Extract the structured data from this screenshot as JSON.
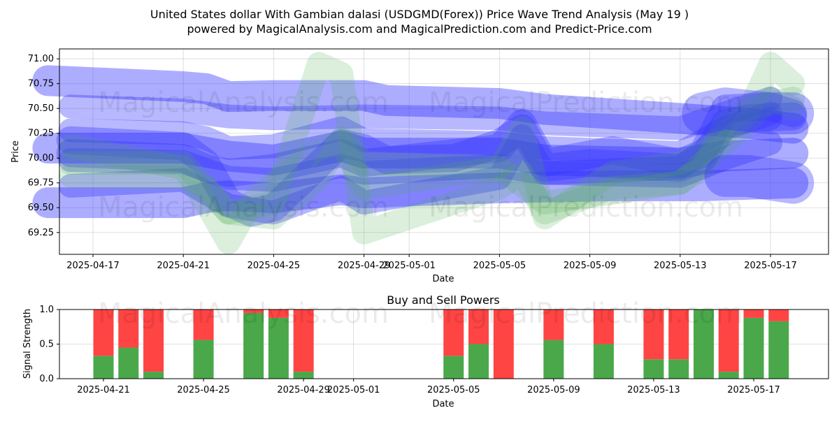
{
  "title_line1": "United States dollar With Gambian dalasi (USDGMD(Forex)) Price Wave Trend Analysis (May 19 )",
  "title_line2": "powered by MagicalAnalysis.com and MagicalPrediction.com and Predict-Price.com",
  "watermarks": [
    "MagicalAnalysis.com",
    "MagicalPrediction.com"
  ],
  "colors": {
    "blue": "#3333ff",
    "green": "#4caf50",
    "red": "#ff4444",
    "bar_green": "#4aa84a"
  },
  "chart_data": [
    {
      "type": "line",
      "xlabel": "Date",
      "ylabel": "Price",
      "ylim": [
        69.03,
        71.1
      ],
      "yticks": [
        69.25,
        69.5,
        69.75,
        70.0,
        70.25,
        70.5,
        70.75,
        71.0
      ],
      "xticks": [
        "2025-04-17",
        "2025-04-21",
        "2025-04-25",
        "2025-04-29",
        "2025-05-01",
        "2025-05-05",
        "2025-05-09",
        "2025-05-13",
        "2025-05-17"
      ],
      "grid": true,
      "series": [
        {
          "color": "blue",
          "width": 44,
          "opacity": 0.4,
          "points": [
            [
              "2025-04-15",
              70.78
            ],
            [
              "2025-04-21",
              70.72
            ],
            [
              "2025-04-22",
              70.7
            ],
            [
              "2025-04-23",
              70.62
            ],
            [
              "2025-04-25",
              70.63
            ],
            [
              "2025-04-29",
              70.63
            ],
            [
              "2025-04-30",
              70.58
            ],
            [
              "2025-05-05",
              70.55
            ],
            [
              "2025-05-07",
              70.49
            ],
            [
              "2025-05-13",
              70.4
            ],
            [
              "2025-05-16",
              70.35
            ],
            [
              "2025-05-18",
              70.3
            ]
          ]
        },
        {
          "color": "blue",
          "width": 44,
          "opacity": 0.4,
          "points": [
            [
              "2025-04-15",
              69.55
            ],
            [
              "2025-04-21",
              69.55
            ],
            [
              "2025-04-22",
              69.6
            ],
            [
              "2025-04-23",
              69.62
            ],
            [
              "2025-04-25",
              69.6
            ],
            [
              "2025-04-28",
              69.68
            ],
            [
              "2025-04-29",
              69.65
            ],
            [
              "2025-05-05",
              69.7
            ],
            [
              "2025-05-10",
              69.72
            ],
            [
              "2025-05-14",
              69.72
            ],
            [
              "2025-05-18",
              69.75
            ]
          ]
        },
        {
          "color": "blue",
          "width": 44,
          "opacity": 0.4,
          "points": [
            [
              "2025-04-15",
              70.1
            ],
            [
              "2025-04-21",
              70.1
            ],
            [
              "2025-04-23",
              70.02
            ],
            [
              "2025-04-25",
              69.98
            ],
            [
              "2025-04-28",
              70.12
            ],
            [
              "2025-04-29",
              70.05
            ],
            [
              "2025-05-05",
              70.05
            ],
            [
              "2025-05-07",
              69.98
            ],
            [
              "2025-05-13",
              69.95
            ],
            [
              "2025-05-15",
              70.02
            ],
            [
              "2025-05-18",
              70.05
            ]
          ]
        },
        {
          "color": "blue",
          "width": 34,
          "opacity": 0.35,
          "points": [
            [
              "2025-04-16",
              70.52
            ],
            [
              "2025-04-21",
              70.48
            ],
            [
              "2025-04-23",
              70.42
            ],
            [
              "2025-04-25",
              70.4
            ],
            [
              "2025-04-29",
              70.42
            ],
            [
              "2025-05-05",
              70.4
            ],
            [
              "2025-05-07",
              70.35
            ],
            [
              "2025-05-13",
              70.3
            ],
            [
              "2025-05-15",
              70.45
            ],
            [
              "2025-05-17",
              70.6
            ]
          ]
        },
        {
          "color": "blue",
          "width": 34,
          "opacity": 0.35,
          "points": [
            [
              "2025-04-16",
              70.28
            ],
            [
              "2025-04-21",
              70.25
            ],
            [
              "2025-04-22",
              70.2
            ],
            [
              "2025-04-23",
              70.1
            ],
            [
              "2025-04-25",
              70.12
            ],
            [
              "2025-04-28",
              70.3
            ],
            [
              "2025-04-29",
              70.18
            ],
            [
              "2025-05-05",
              70.15
            ],
            [
              "2025-05-07",
              70.1
            ],
            [
              "2025-05-13",
              70.05
            ],
            [
              "2025-05-15",
              70.3
            ],
            [
              "2025-05-17",
              70.45
            ]
          ]
        },
        {
          "color": "blue",
          "width": 34,
          "opacity": 0.35,
          "points": [
            [
              "2025-04-16",
              69.98
            ],
            [
              "2025-04-21",
              69.96
            ],
            [
              "2025-04-22",
              69.88
            ],
            [
              "2025-04-23",
              69.8
            ],
            [
              "2025-04-25",
              69.78
            ],
            [
              "2025-04-28",
              69.92
            ],
            [
              "2025-04-29",
              69.85
            ],
            [
              "2025-05-05",
              69.92
            ],
            [
              "2025-05-07",
              69.85
            ],
            [
              "2025-05-13",
              69.82
            ],
            [
              "2025-05-15",
              70.0
            ],
            [
              "2025-05-17",
              70.15
            ]
          ]
        },
        {
          "color": "blue",
          "width": 34,
          "opacity": 0.35,
          "points": [
            [
              "2025-04-16",
              69.72
            ],
            [
              "2025-04-21",
              69.78
            ],
            [
              "2025-04-23",
              69.52
            ],
            [
              "2025-04-25",
              69.45
            ],
            [
              "2025-04-28",
              69.7
            ],
            [
              "2025-04-29",
              69.55
            ],
            [
              "2025-05-05",
              69.8
            ],
            [
              "2025-05-06",
              70.22
            ],
            [
              "2025-05-07",
              69.85
            ],
            [
              "2025-05-13",
              69.9
            ],
            [
              "2025-05-15",
              70.25
            ],
            [
              "2025-05-17",
              70.4
            ]
          ]
        },
        {
          "color": "blue",
          "width": 40,
          "opacity": 0.35,
          "points": [
            [
              "2025-04-16",
              70.05
            ],
            [
              "2025-04-21",
              70.0
            ],
            [
              "2025-04-22",
              69.9
            ],
            [
              "2025-04-23",
              69.85
            ],
            [
              "2025-04-25",
              69.9
            ],
            [
              "2025-04-28",
              70.05
            ],
            [
              "2025-04-29",
              69.95
            ],
            [
              "2025-05-05",
              70.1
            ],
            [
              "2025-05-06",
              70.35
            ],
            [
              "2025-05-07",
              69.95
            ],
            [
              "2025-05-10",
              70.08
            ],
            [
              "2025-05-13",
              69.95
            ],
            [
              "2025-05-14",
              70.05
            ],
            [
              "2025-05-15",
              70.5
            ],
            [
              "2025-05-17",
              70.52
            ],
            [
              "2025-05-18",
              70.45
            ]
          ]
        },
        {
          "color": "blue",
          "width": 40,
          "opacity": 0.35,
          "points": [
            [
              "2025-04-16",
              70.18
            ],
            [
              "2025-04-21",
              70.12
            ],
            [
              "2025-04-22",
              69.95
            ],
            [
              "2025-04-23",
              69.55
            ],
            [
              "2025-04-24",
              69.45
            ],
            [
              "2025-04-25",
              69.5
            ],
            [
              "2025-04-28",
              70.15
            ],
            [
              "2025-04-29",
              70.1
            ],
            [
              "2025-04-30",
              69.98
            ],
            [
              "2025-05-03",
              70.0
            ],
            [
              "2025-05-05",
              70.15
            ],
            [
              "2025-05-06",
              70.3
            ],
            [
              "2025-05-07",
              69.9
            ],
            [
              "2025-05-09",
              69.95
            ],
            [
              "2025-05-13",
              69.9
            ],
            [
              "2025-05-14",
              70.0
            ],
            [
              "2025-05-15",
              70.35
            ],
            [
              "2025-05-16",
              70.4
            ],
            [
              "2025-05-18",
              70.42
            ]
          ]
        },
        {
          "color": "green",
          "width": 34,
          "opacity": 0.2,
          "points": [
            [
              "2025-04-16",
              70.12
            ],
            [
              "2025-04-21",
              69.9
            ],
            [
              "2025-04-22",
              69.55
            ],
            [
              "2025-04-23",
              69.15
            ],
            [
              "2025-04-24",
              69.55
            ],
            [
              "2025-04-25",
              69.75
            ],
            [
              "2025-04-27",
              70.1
            ],
            [
              "2025-04-28",
              70.15
            ],
            [
              "2025-04-29",
              69.7
            ],
            [
              "2025-05-05",
              69.9
            ],
            [
              "2025-05-06",
              70.3
            ],
            [
              "2025-05-07",
              69.4
            ],
            [
              "2025-05-10",
              69.85
            ],
            [
              "2025-05-13",
              69.95
            ],
            [
              "2025-05-14",
              70.05
            ],
            [
              "2025-05-15",
              70.25
            ],
            [
              "2025-05-16",
              70.45
            ],
            [
              "2025-05-17",
              70.95
            ],
            [
              "2025-05-18",
              70.75
            ]
          ]
        },
        {
          "color": "green",
          "width": 34,
          "opacity": 0.2,
          "points": [
            [
              "2025-04-16",
              69.82
            ],
            [
              "2025-04-21",
              69.8
            ],
            [
              "2025-04-22",
              69.7
            ],
            [
              "2025-04-23",
              69.45
            ],
            [
              "2025-04-25",
              69.55
            ],
            [
              "2025-04-27",
              70.95
            ],
            [
              "2025-04-28",
              70.85
            ],
            [
              "2025-04-29",
              69.25
            ],
            [
              "2025-05-05",
              69.7
            ],
            [
              "2025-05-06",
              69.85
            ],
            [
              "2025-05-07",
              69.45
            ],
            [
              "2025-05-10",
              69.7
            ],
            [
              "2025-05-13",
              69.75
            ],
            [
              "2025-05-14",
              69.9
            ],
            [
              "2025-05-15",
              70.35
            ],
            [
              "2025-05-16",
              70.5
            ],
            [
              "2025-05-18",
              70.6
            ]
          ]
        },
        {
          "color": "green",
          "width": 34,
          "opacity": 0.2,
          "points": [
            [
              "2025-04-16",
              69.95
            ],
            [
              "2025-04-21",
              69.95
            ],
            [
              "2025-04-23",
              69.45
            ],
            [
              "2025-04-25",
              69.4
            ],
            [
              "2025-04-27",
              69.8
            ],
            [
              "2025-04-28",
              70.2
            ],
            [
              "2025-04-29",
              69.95
            ],
            [
              "2025-05-05",
              69.9
            ],
            [
              "2025-05-07",
              69.55
            ],
            [
              "2025-05-13",
              69.75
            ],
            [
              "2025-05-15",
              70.15
            ],
            [
              "2025-05-17",
              70.6
            ],
            [
              "2025-05-18",
              70.5
            ]
          ]
        },
        {
          "color": "blue",
          "width": 60,
          "opacity": 0.35,
          "points": [
            [
              "2025-05-14",
              70.45
            ],
            [
              "2025-05-15",
              70.5
            ],
            [
              "2025-05-17",
              70.45
            ],
            [
              "2025-05-18",
              70.45
            ]
          ]
        },
        {
          "color": "blue",
          "width": 60,
          "opacity": 0.35,
          "points": [
            [
              "2025-05-15",
              69.82
            ],
            [
              "2025-05-16",
              69.82
            ],
            [
              "2025-05-18",
              69.75
            ]
          ]
        }
      ]
    },
    {
      "type": "bar",
      "title": "Buy and Sell Powers",
      "ylabel": "Signal Strength",
      "xlabel": "Date",
      "ylim": [
        0,
        1.0
      ],
      "yticks": [
        "0.0",
        "0.5",
        "1.0"
      ],
      "xticks": [
        "2025-04-21",
        "2025-04-25",
        "2025-04-29",
        "2025-05-01",
        "2025-05-05",
        "2025-05-09",
        "2025-05-13",
        "2025-05-17"
      ],
      "categories": [
        "2025-04-21",
        "2025-04-22",
        "2025-04-23",
        "2025-04-25",
        "2025-04-27",
        "2025-04-28",
        "2025-04-29",
        "2025-05-05",
        "2025-05-06",
        "2025-05-07",
        "2025-05-09",
        "2025-05-11",
        "2025-05-13",
        "2025-05-14",
        "2025-05-15",
        "2025-05-16",
        "2025-05-17",
        "2025-05-18"
      ],
      "series": [
        {
          "color": "bar_green",
          "values": [
            0.33,
            0.45,
            0.1,
            0.56,
            0.95,
            0.88,
            0.1,
            0.33,
            0.5,
            0.0,
            0.56,
            0.5,
            0.28,
            0.28,
            1.0,
            0.1,
            0.88,
            0.83
          ]
        },
        {
          "color": "red",
          "values": [
            0.67,
            0.55,
            0.9,
            0.44,
            0.05,
            0.12,
            0.9,
            0.67,
            0.5,
            1.0,
            0.44,
            0.5,
            0.72,
            0.72,
            0.0,
            0.9,
            0.12,
            0.17
          ]
        }
      ]
    }
  ]
}
